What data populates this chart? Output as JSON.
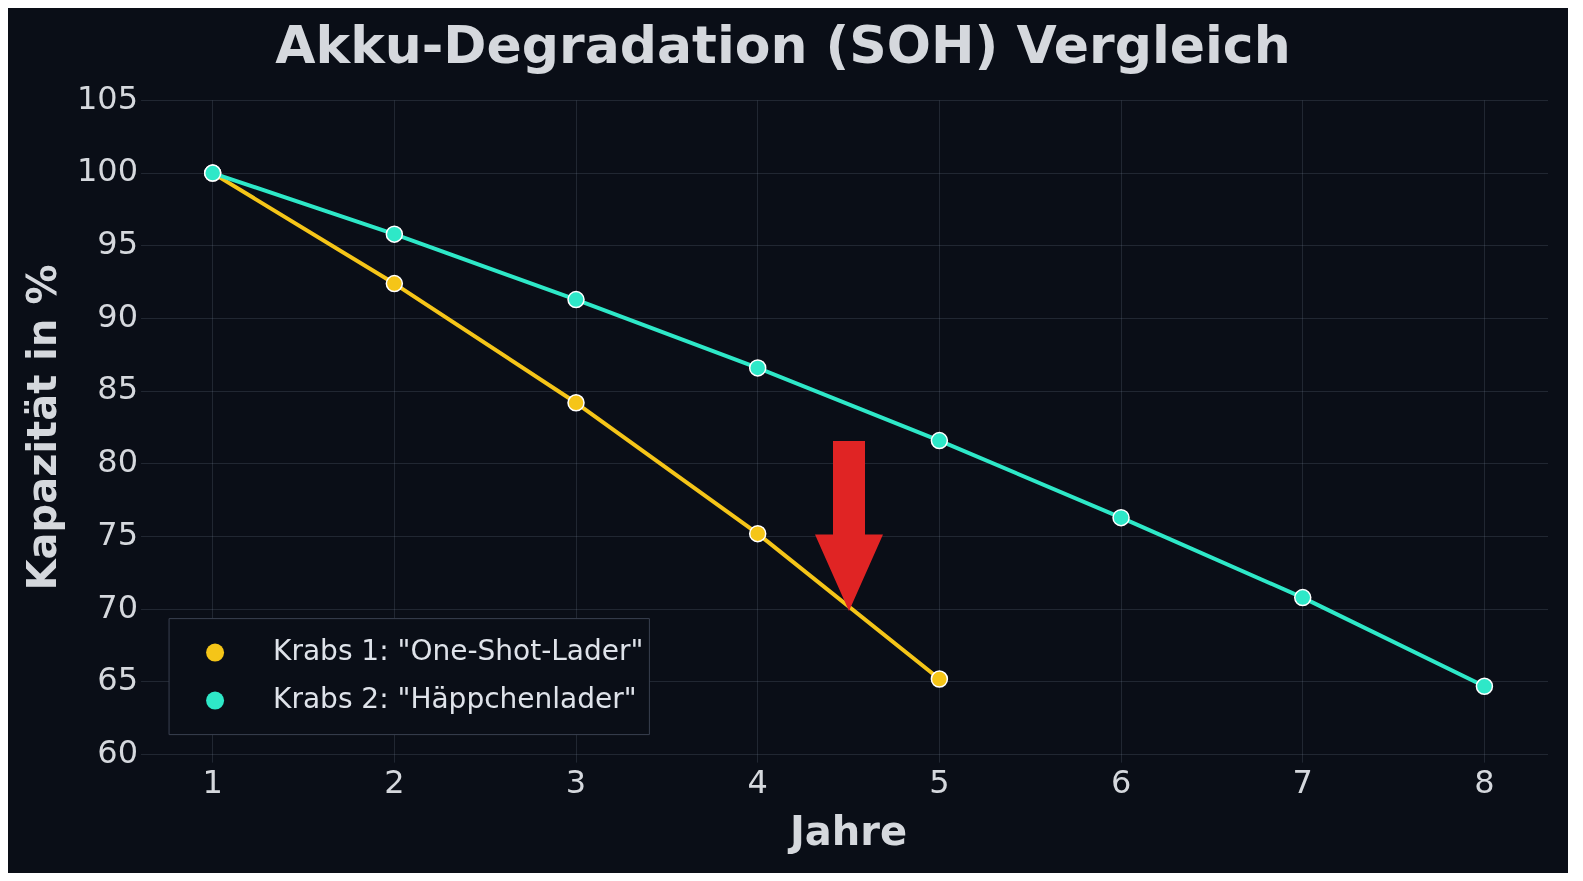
{
  "chart_data": {
    "type": "line",
    "title": "Akku-Degradation (SOH) Vergleich",
    "xlabel": "Jahre",
    "ylabel": "Kapazität in %",
    "x": [
      1,
      2,
      3,
      4,
      5,
      6,
      7,
      8
    ],
    "series": [
      {
        "name": "Krabs 1: \"One-Shot-Lader\"",
        "color": "#f5c518",
        "x": [
          1,
          2,
          3,
          4,
          5
        ],
        "values": [
          100,
          92.4,
          84.2,
          75.2,
          65.2
        ]
      },
      {
        "name": "Krabs 2: \"Häppchenlader\"",
        "color": "#2ee8c8",
        "values": [
          100,
          95.8,
          91.3,
          86.6,
          81.6,
          76.3,
          70.8,
          64.7
        ]
      }
    ],
    "xlim": [
      0.65,
      8.35
    ],
    "ylim": [
      60,
      105
    ],
    "xticks": [
      1,
      2,
      3,
      4,
      5,
      6,
      7,
      8
    ],
    "yticks": [
      60,
      65,
      70,
      75,
      80,
      85,
      90,
      95,
      100,
      105
    ],
    "grid": true,
    "legend": "bottom left",
    "marker": "circle",
    "line_style": "solid"
  }
}
